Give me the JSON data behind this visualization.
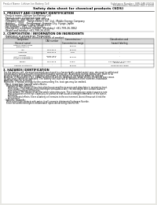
{
  "bg_color": "#e8e8e4",
  "page_bg": "#ffffff",
  "header_left": "Product Name: Lithium Ion Battery Cell",
  "header_right_line1": "Substance Number: SBN-0AB-00018",
  "header_right_line2": "Established / Revision: Dec.7.2010",
  "title": "Safety data sheet for chemical products (SDS)",
  "section1_title": "1. PRODUCT AND COMPANY IDENTIFICATION",
  "s1_lines": [
    "· Product name: Lithium Ion Battery Cell",
    "· Product code: Cylindrical-type cell",
    "  SN1-8850U, SN1-8650U, SN1-8550A",
    "· Company name:   Sanyo Electric Co., Ltd., Mobile Energy Company",
    "· Address:   2001 , Kamikamari, Sumoto City, Hyogo, Japan",
    "· Telephone number:  +81-799-26-4111",
    "· Fax number:  +81-799-26-4128",
    "· Emergency telephone number (Weekday) +81-799-26-3862",
    "  (Night and holiday) +81-799-26-4101"
  ],
  "section2_title": "2. COMPOSITION / INFORMATION ON INGREDIENTS",
  "s2_intro": "· Substance or preparation: Preparation",
  "s2_sub": "· Information about the chemical nature of product:",
  "table_headers": [
    "Component\n(Several name)",
    "CAS number",
    "Concentration /\nConcentration range",
    "Classification and\nhazard labeling"
  ],
  "table_rows": [
    [
      "Lithium cobalt oxide\n(LiMn/Co/PO4)",
      "-",
      "30-60%",
      "-"
    ],
    [
      "Iron",
      "7439-89-6",
      "10-20%",
      "-"
    ],
    [
      "Aluminum",
      "7429-90-5",
      "2-6%",
      "-"
    ],
    [
      "Graphite\n(Metal in graphite-1)\n(Al/Mn in graphite-1)",
      "77782-42-5\n7429-90-5",
      "10-30%",
      "-"
    ],
    [
      "Copper",
      "7440-50-8",
      "5-15%",
      "Sensitization of the skin\ngroup No.2"
    ],
    [
      "Organic electrolyte",
      "-",
      "10-20%",
      "Inflammable liquid"
    ]
  ],
  "table_row_heights": [
    5.5,
    3.5,
    3.5,
    7.5,
    5.5,
    3.5
  ],
  "section3_title": "3. HAZARDS IDENTIFICATION",
  "s3_body": [
    "For the battery cell, chemical materials are stored in a hermetically sealed metal case, designed to withstand",
    "temperatures and pressures encountered during normal use. As a result, during normal use, there is no",
    "physical danger of ignition or explosion and there is no danger of hazardous materials leakage.",
    "However, if exposed to a fire, added mechanical shocks, decomposes, when electro-chemicals may cause.",
    "By gas leaks cannot be operated. The battery cell case will be breached of the extreme, hazardous",
    "materials may be released.",
    "Moreover, if heated strongly by the surrounding fire, toxic gas may be emitted."
  ],
  "s3_sub1": "· Most important hazard and effects:",
  "s3_human": "Human health effects:",
  "s3_human_lines": [
    "Inhalation: The release of the electrolyte has an anesthesia action and stimulates in respiratory tract.",
    "Skin contact: The release of the electrolyte stimulates a skin. The electrolyte skin contact causes a",
    "sore and stimulation on the skin.",
    "Eye contact: The release of the electrolyte stimulates eyes. The electrolyte eye contact causes a sore",
    "and stimulation on the eye. Especially, a substance that causes a strong inflammation of the eyes is",
    "contained.",
    "Environmental effects: Since a battery cell remains in the environment, do not throw out it into the",
    "environment."
  ],
  "s3_sub2": "· Specific hazards:",
  "s3_specific_lines": [
    "If the electrolyte contacts with water, it will generate detrimental hydrogen fluoride.",
    "Since the used electrolyte is inflammable liquid, do not bring close to fire."
  ]
}
